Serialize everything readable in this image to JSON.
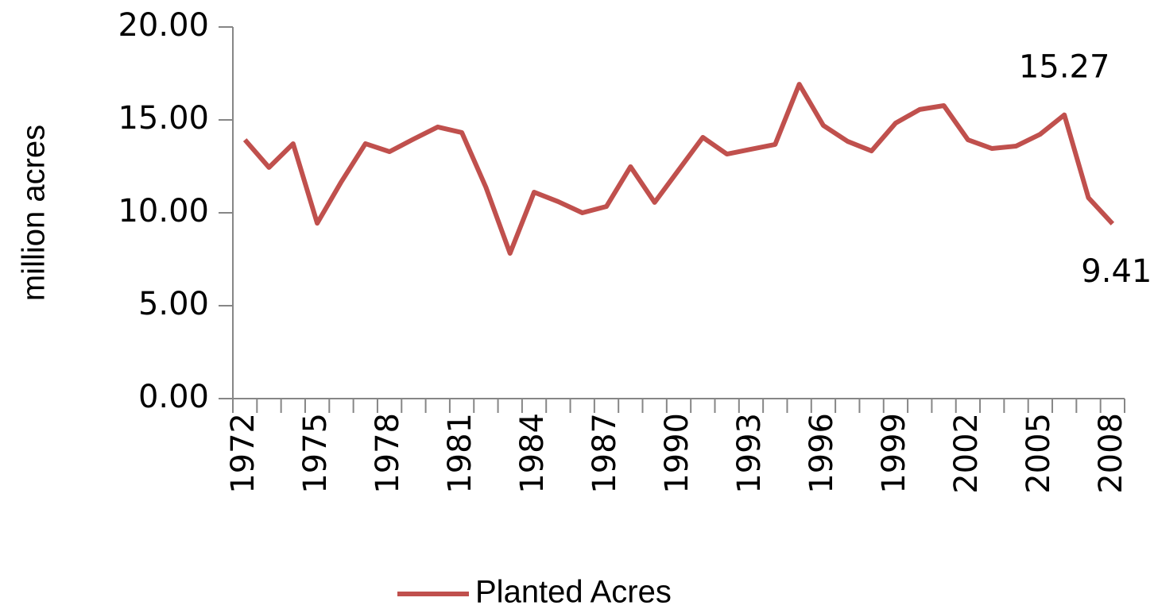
{
  "chart_data": {
    "type": "line",
    "y_label": "million acres",
    "categories": [
      "1972",
      null,
      null,
      "1975",
      null,
      null,
      "1978",
      null,
      null,
      "1981",
      null,
      null,
      "1984",
      null,
      null,
      "1987",
      null,
      null,
      "1990",
      null,
      null,
      "1993",
      null,
      null,
      "1996",
      null,
      null,
      "1999",
      null,
      null,
      "2002",
      null,
      null,
      "2005",
      null,
      null,
      "2008"
    ],
    "series": [
      {
        "name": "Planted Acres",
        "color": "#c0504d",
        "values": [
          13.93,
          12.44,
          13.72,
          9.44,
          11.67,
          13.72,
          13.29,
          13.97,
          14.62,
          14.32,
          11.37,
          7.82,
          11.11,
          10.6,
          10.0,
          10.34,
          12.48,
          10.56,
          12.31,
          14.06,
          13.16,
          13.42,
          13.68,
          16.92,
          14.7,
          13.85,
          13.33,
          14.83,
          15.56,
          15.77,
          13.93,
          13.46,
          13.59,
          14.23,
          15.27,
          10.81,
          9.41
        ],
        "value_labels": [
          null,
          null,
          null,
          null,
          null,
          null,
          null,
          null,
          null,
          null,
          null,
          null,
          null,
          null,
          null,
          null,
          null,
          null,
          null,
          null,
          null,
          null,
          null,
          null,
          null,
          null,
          null,
          null,
          null,
          null,
          null,
          null,
          null,
          null,
          "15.27",
          null,
          "9.41"
        ]
      }
    ],
    "ylim": [
      0,
      20
    ],
    "yticks": [
      {
        "value": 0,
        "label": "0.00"
      },
      {
        "value": 5,
        "label": "5.00"
      },
      {
        "value": 10,
        "label": "10.00"
      },
      {
        "value": 15,
        "label": "15.00"
      },
      {
        "value": 20,
        "label": "20.00"
      }
    ],
    "grid": false,
    "legend": "bottom"
  }
}
